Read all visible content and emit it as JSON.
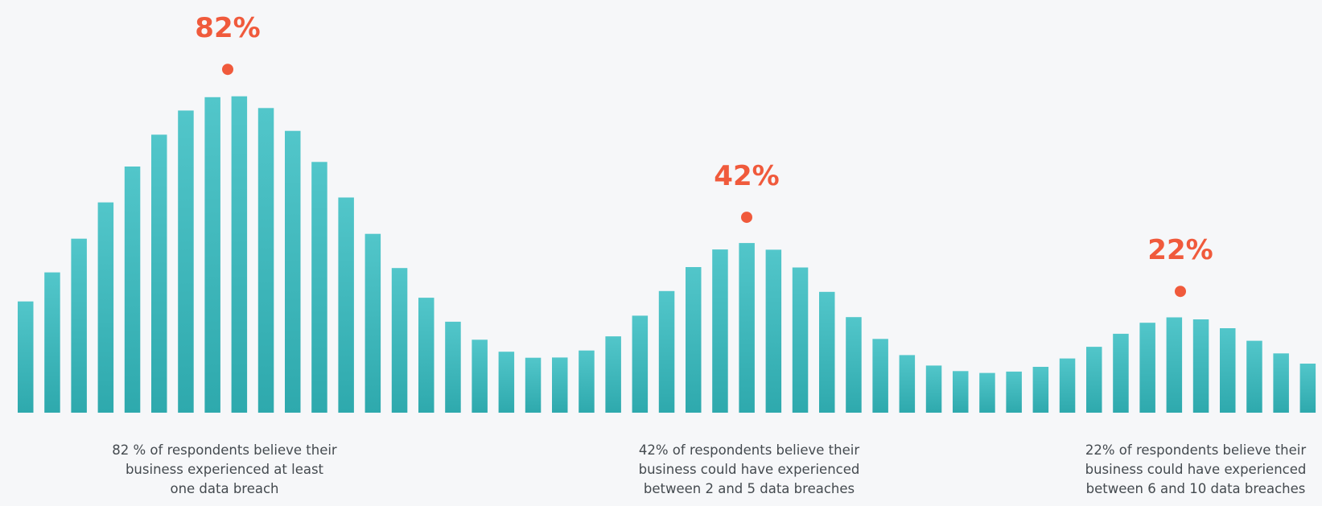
{
  "chart_data": {
    "type": "area",
    "title": "",
    "xlabel": "",
    "ylabel": "",
    "grid": false,
    "legend": "none",
    "colors": {
      "bars_top": "#52c6ca",
      "bars_bottom": "#2ea9ad",
      "highlight": "#f05a3c",
      "text": "#444a4f"
    },
    "peaks": [
      {
        "label": "82%",
        "value": 82,
        "description": "82 % of respondents believe their\nbusiness experienced at least\none data breach"
      },
      {
        "label": "42%",
        "value": 42,
        "description": "42% of respondents believe their\nbusiness could have experienced\nbetween 2 and 5 data breaches"
      },
      {
        "label": "22%",
        "value": 22,
        "description": "22% of respondents believe their\nbusiness could have experienced\nbetween 6 and 10 data breaches"
      }
    ]
  }
}
